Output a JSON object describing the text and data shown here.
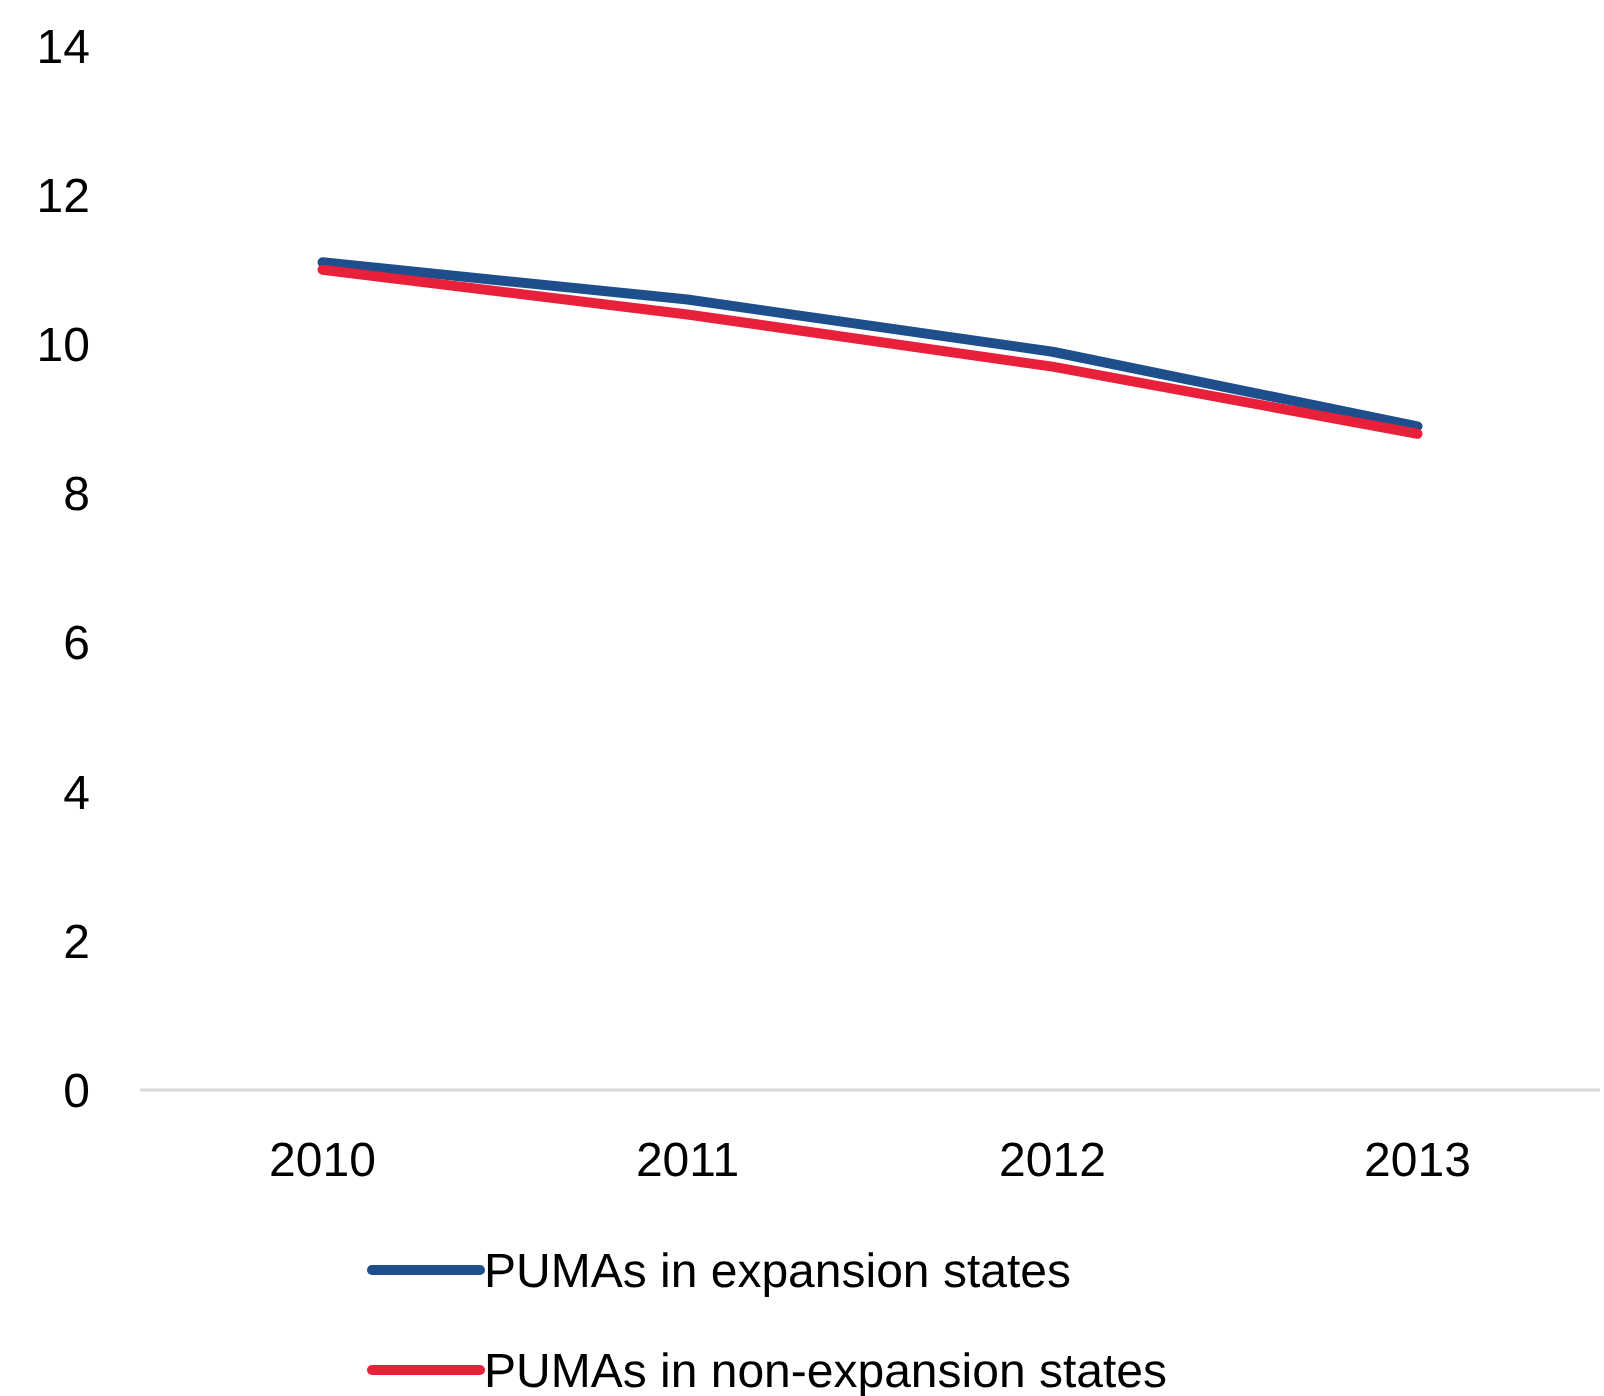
{
  "chart_data": {
    "type": "line",
    "categories": [
      "2010",
      "2011",
      "2012",
      "2013"
    ],
    "series": [
      {
        "name": "PUMAs in expansion states",
        "color": "#1f4e8c",
        "values": [
          11.1,
          10.6,
          9.9,
          8.9
        ]
      },
      {
        "name": "PUMAs in non-expansion states",
        "color": "#e8203a",
        "values": [
          11.0,
          10.4,
          9.7,
          8.8
        ]
      }
    ],
    "ylim": [
      0,
      14
    ],
    "yticks": [
      0,
      2,
      4,
      6,
      8,
      10,
      12,
      14
    ],
    "grid": false,
    "legend": "bottom",
    "marker": "none",
    "line_style": "solid"
  }
}
